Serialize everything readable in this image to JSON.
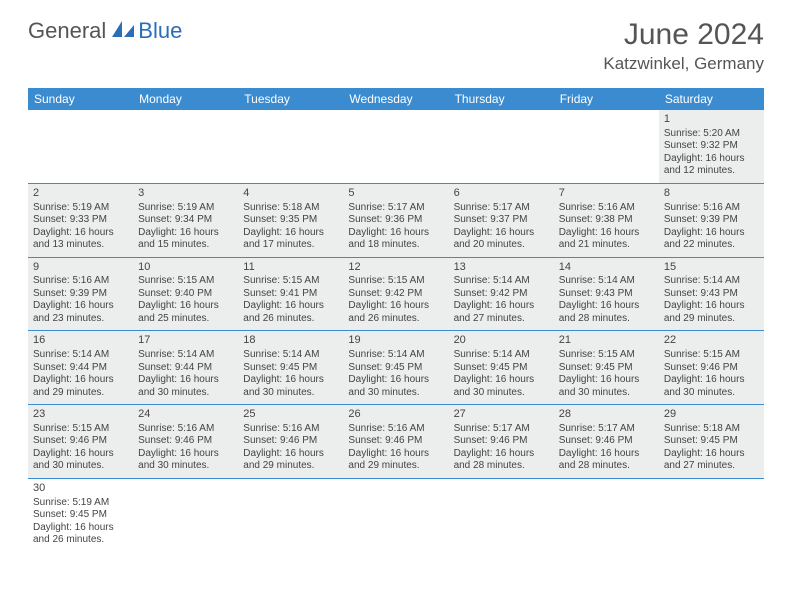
{
  "brand": {
    "part1": "General",
    "part2": "Blue"
  },
  "title": "June 2024",
  "location": "Katzwinkel, Germany",
  "colors": {
    "header_bg": "#3b8bd0",
    "header_text": "#ffffff",
    "stripe_bg": "#eceded",
    "border": "#3b8bd0",
    "text": "#444444",
    "brand_gray": "#555555",
    "brand_blue": "#2a6eb8"
  },
  "dayNames": [
    "Sunday",
    "Monday",
    "Tuesday",
    "Wednesday",
    "Thursday",
    "Friday",
    "Saturday"
  ],
  "weeks": [
    [
      null,
      null,
      null,
      null,
      null,
      null,
      {
        "n": "1",
        "sr": "5:20 AM",
        "ss": "9:32 PM",
        "dl": "16 hours and 12 minutes."
      }
    ],
    [
      {
        "n": "2",
        "sr": "5:19 AM",
        "ss": "9:33 PM",
        "dl": "16 hours and 13 minutes."
      },
      {
        "n": "3",
        "sr": "5:19 AM",
        "ss": "9:34 PM",
        "dl": "16 hours and 15 minutes."
      },
      {
        "n": "4",
        "sr": "5:18 AM",
        "ss": "9:35 PM",
        "dl": "16 hours and 17 minutes."
      },
      {
        "n": "5",
        "sr": "5:17 AM",
        "ss": "9:36 PM",
        "dl": "16 hours and 18 minutes."
      },
      {
        "n": "6",
        "sr": "5:17 AM",
        "ss": "9:37 PM",
        "dl": "16 hours and 20 minutes."
      },
      {
        "n": "7",
        "sr": "5:16 AM",
        "ss": "9:38 PM",
        "dl": "16 hours and 21 minutes."
      },
      {
        "n": "8",
        "sr": "5:16 AM",
        "ss": "9:39 PM",
        "dl": "16 hours and 22 minutes."
      }
    ],
    [
      {
        "n": "9",
        "sr": "5:16 AM",
        "ss": "9:39 PM",
        "dl": "16 hours and 23 minutes."
      },
      {
        "n": "10",
        "sr": "5:15 AM",
        "ss": "9:40 PM",
        "dl": "16 hours and 25 minutes."
      },
      {
        "n": "11",
        "sr": "5:15 AM",
        "ss": "9:41 PM",
        "dl": "16 hours and 26 minutes."
      },
      {
        "n": "12",
        "sr": "5:15 AM",
        "ss": "9:42 PM",
        "dl": "16 hours and 26 minutes."
      },
      {
        "n": "13",
        "sr": "5:14 AM",
        "ss": "9:42 PM",
        "dl": "16 hours and 27 minutes."
      },
      {
        "n": "14",
        "sr": "5:14 AM",
        "ss": "9:43 PM",
        "dl": "16 hours and 28 minutes."
      },
      {
        "n": "15",
        "sr": "5:14 AM",
        "ss": "9:43 PM",
        "dl": "16 hours and 29 minutes."
      }
    ],
    [
      {
        "n": "16",
        "sr": "5:14 AM",
        "ss": "9:44 PM",
        "dl": "16 hours and 29 minutes."
      },
      {
        "n": "17",
        "sr": "5:14 AM",
        "ss": "9:44 PM",
        "dl": "16 hours and 30 minutes."
      },
      {
        "n": "18",
        "sr": "5:14 AM",
        "ss": "9:45 PM",
        "dl": "16 hours and 30 minutes."
      },
      {
        "n": "19",
        "sr": "5:14 AM",
        "ss": "9:45 PM",
        "dl": "16 hours and 30 minutes."
      },
      {
        "n": "20",
        "sr": "5:14 AM",
        "ss": "9:45 PM",
        "dl": "16 hours and 30 minutes."
      },
      {
        "n": "21",
        "sr": "5:15 AM",
        "ss": "9:45 PM",
        "dl": "16 hours and 30 minutes."
      },
      {
        "n": "22",
        "sr": "5:15 AM",
        "ss": "9:46 PM",
        "dl": "16 hours and 30 minutes."
      }
    ],
    [
      {
        "n": "23",
        "sr": "5:15 AM",
        "ss": "9:46 PM",
        "dl": "16 hours and 30 minutes."
      },
      {
        "n": "24",
        "sr": "5:16 AM",
        "ss": "9:46 PM",
        "dl": "16 hours and 30 minutes."
      },
      {
        "n": "25",
        "sr": "5:16 AM",
        "ss": "9:46 PM",
        "dl": "16 hours and 29 minutes."
      },
      {
        "n": "26",
        "sr": "5:16 AM",
        "ss": "9:46 PM",
        "dl": "16 hours and 29 minutes."
      },
      {
        "n": "27",
        "sr": "5:17 AM",
        "ss": "9:46 PM",
        "dl": "16 hours and 28 minutes."
      },
      {
        "n": "28",
        "sr": "5:17 AM",
        "ss": "9:46 PM",
        "dl": "16 hours and 28 minutes."
      },
      {
        "n": "29",
        "sr": "5:18 AM",
        "ss": "9:45 PM",
        "dl": "16 hours and 27 minutes."
      }
    ],
    [
      {
        "n": "30",
        "sr": "5:19 AM",
        "ss": "9:45 PM",
        "dl": "16 hours and 26 minutes."
      },
      null,
      null,
      null,
      null,
      null,
      null
    ]
  ],
  "labels": {
    "sunrise": "Sunrise:",
    "sunset": "Sunset:",
    "daylight": "Daylight:"
  }
}
